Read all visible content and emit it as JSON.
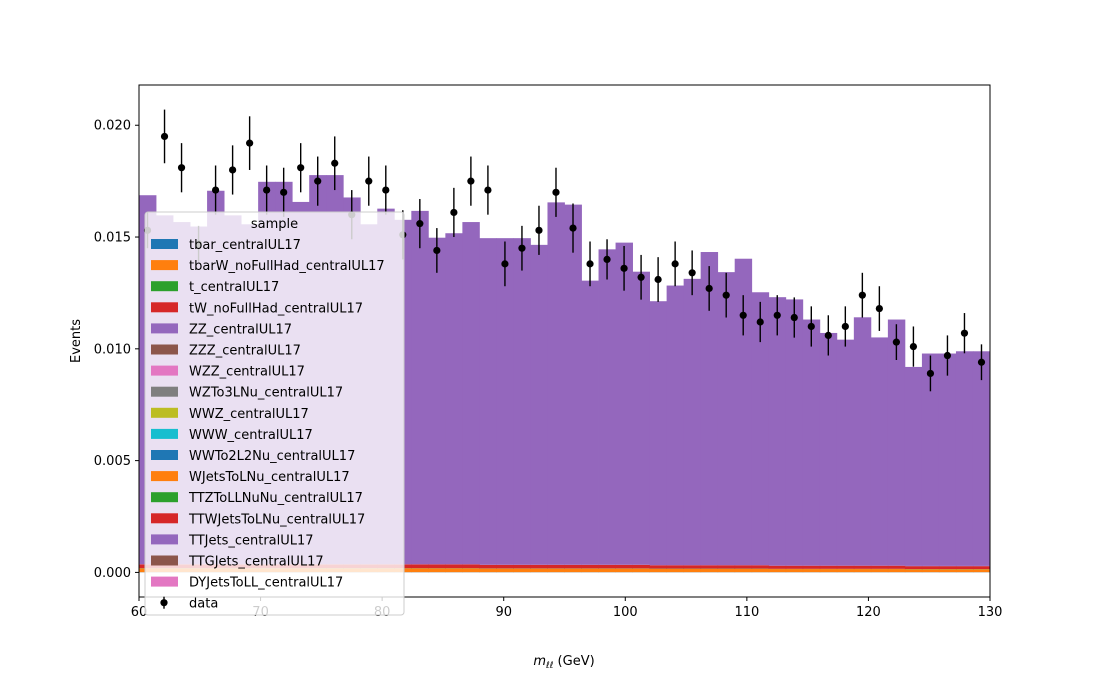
{
  "chart_data": {
    "type": "bar",
    "subtype": "stacked-step-histogram-with-data-points",
    "xlabel_main": "m",
    "xlabel_sub": "ℓℓ",
    "xlabel_unit": " (GeV)",
    "ylabel": "Events",
    "xlim": [
      60,
      130
    ],
    "ylim": [
      -0.0011,
      0.0218
    ],
    "xticks": [
      60,
      70,
      80,
      90,
      100,
      110,
      120,
      130
    ],
    "xtick_labels": [
      "60",
      "70",
      "80",
      "90",
      "100",
      "110",
      "120",
      "130"
    ],
    "yticks": [
      0.0,
      0.005,
      0.01,
      0.015,
      0.02
    ],
    "ytick_labels": [
      "0.000",
      "0.005",
      "0.010",
      "0.015",
      "0.020"
    ],
    "bin_edges": [
      60,
      61.4,
      62.8,
      64.2,
      65.6,
      67,
      68.4,
      69.8,
      71.2,
      72.6,
      74,
      75.4,
      76.8,
      78.2,
      79.6,
      81,
      82.4,
      83.8,
      85.2,
      86.6,
      88,
      89.4,
      90.8,
      92.2,
      93.6,
      95,
      96.4,
      97.8,
      99.2,
      100.6,
      102,
      103.4,
      104.8,
      106.2,
      107.6,
      109,
      110.4,
      111.8,
      113.2,
      114.6,
      116,
      117.4,
      118.8,
      120.2,
      121.6,
      123,
      124.4,
      125.8,
      127.2,
      128.6,
      130
    ],
    "legend_title": "sample",
    "legend_position": "lower-left",
    "series": [
      {
        "name": "tbar_centralUL17",
        "color": "#1f77b4",
        "values": [
          1e-05,
          1e-05,
          1e-05,
          1e-05,
          1e-05,
          1e-05,
          1e-05,
          1e-05,
          1e-05,
          1e-05,
          1e-05,
          1e-05,
          1e-05,
          1e-05,
          1e-05,
          1e-05,
          1e-05,
          1e-05,
          1e-05,
          1e-05,
          1e-05,
          1e-05,
          1e-05,
          1e-05,
          1e-05,
          1e-05,
          1e-05,
          1e-05,
          1e-05,
          1e-05,
          1e-05,
          1e-05,
          1e-05,
          1e-05,
          1e-05,
          1e-05,
          1e-05,
          1e-05,
          1e-05,
          1e-05,
          1e-05,
          1e-05,
          1e-05,
          1e-05,
          1e-05,
          1e-05,
          1e-05,
          1e-05,
          1e-05,
          1e-05
        ]
      },
      {
        "name": "tbarW_noFullHad_centralUL17",
        "color": "#ff7f0e",
        "values": [
          0.00017,
          0.00017,
          0.00017,
          0.00017,
          0.00017,
          0.00017,
          0.00017,
          0.00017,
          0.00017,
          0.00017,
          0.00017,
          0.00017,
          0.00017,
          0.00017,
          0.00017,
          0.00017,
          0.00017,
          0.00017,
          0.00017,
          0.00017,
          0.00016,
          0.00016,
          0.00016,
          0.00016,
          0.00016,
          0.00016,
          0.00016,
          0.00016,
          0.00016,
          0.00016,
          0.00015,
          0.00015,
          0.00015,
          0.00015,
          0.00015,
          0.00015,
          0.00015,
          0.00014,
          0.00014,
          0.00014,
          0.00014,
          0.00014,
          0.00014,
          0.00014,
          0.00014,
          0.00013,
          0.00013,
          0.00013,
          0.00013,
          0.00013
        ]
      },
      {
        "name": "t_centralUL17",
        "color": "#2ca02c",
        "values": [
          1e-05,
          1e-05,
          1e-05,
          1e-05,
          1e-05,
          1e-05,
          1e-05,
          1e-05,
          1e-05,
          1e-05,
          1e-05,
          1e-05,
          1e-05,
          1e-05,
          1e-05,
          1e-05,
          1e-05,
          1e-05,
          1e-05,
          1e-05,
          1e-05,
          1e-05,
          1e-05,
          1e-05,
          1e-05,
          1e-05,
          1e-05,
          1e-05,
          1e-05,
          1e-05,
          1e-05,
          1e-05,
          1e-05,
          1e-05,
          1e-05,
          1e-05,
          1e-05,
          1e-05,
          1e-05,
          1e-05,
          1e-05,
          1e-05,
          1e-05,
          1e-05,
          1e-05,
          1e-05,
          1e-05,
          1e-05,
          1e-05,
          1e-05
        ]
      },
      {
        "name": "tW_noFullHad_centralUL17",
        "color": "#d62728",
        "values": [
          0.00017,
          0.00017,
          0.00017,
          0.00017,
          0.00017,
          0.00017,
          0.00017,
          0.00017,
          0.00017,
          0.00017,
          0.00017,
          0.00017,
          0.00017,
          0.00017,
          0.00017,
          0.00017,
          0.00017,
          0.00017,
          0.00017,
          0.00017,
          0.00016,
          0.00016,
          0.00016,
          0.00016,
          0.00016,
          0.00016,
          0.00016,
          0.00016,
          0.00016,
          0.00016,
          0.00015,
          0.00015,
          0.00015,
          0.00015,
          0.00015,
          0.00015,
          0.00015,
          0.00014,
          0.00014,
          0.00014,
          0.00014,
          0.00014,
          0.00014,
          0.00014,
          0.00014,
          0.00013,
          0.00013,
          0.00013,
          0.00013,
          0.00013
        ]
      },
      {
        "name": "ZZ_centralUL17",
        "color": "#9467bd",
        "values": [
          1e-05,
          1e-05,
          1e-05,
          1e-05,
          1e-05,
          1e-05,
          1e-05,
          1e-05,
          1e-05,
          1e-05,
          1e-05,
          1e-05,
          1e-05,
          1e-05,
          1e-05,
          1e-05,
          1e-05,
          1e-05,
          1e-05,
          1e-05,
          1e-05,
          1e-05,
          1e-05,
          1e-05,
          1e-05,
          1e-05,
          1e-05,
          1e-05,
          1e-05,
          1e-05,
          1e-05,
          1e-05,
          1e-05,
          1e-05,
          1e-05,
          1e-05,
          1e-05,
          1e-05,
          1e-05,
          1e-05,
          1e-05,
          1e-05,
          1e-05,
          1e-05,
          1e-05,
          1e-05,
          1e-05,
          1e-05,
          1e-05,
          1e-05
        ]
      },
      {
        "name": "ZZZ_centralUL17",
        "color": "#8c564b",
        "values": [
          0,
          0,
          0,
          0,
          0,
          0,
          0,
          0,
          0,
          0,
          0,
          0,
          0,
          0,
          0,
          0,
          0,
          0,
          0,
          0,
          0,
          0,
          0,
          0,
          0,
          0,
          0,
          0,
          0,
          0,
          0,
          0,
          0,
          0,
          0,
          0,
          0,
          0,
          0,
          0,
          0,
          0,
          0,
          0,
          0,
          0,
          0,
          0,
          0,
          0
        ]
      },
      {
        "name": "WZZ_centralUL17",
        "color": "#e377c2",
        "values": [
          0,
          0,
          0,
          0,
          0,
          0,
          0,
          0,
          0,
          0,
          0,
          0,
          0,
          0,
          0,
          0,
          0,
          0,
          0,
          0,
          0,
          0,
          0,
          0,
          0,
          0,
          0,
          0,
          0,
          0,
          0,
          0,
          0,
          0,
          0,
          0,
          0,
          0,
          0,
          0,
          0,
          0,
          0,
          0,
          0,
          0,
          0,
          0,
          0,
          0
        ]
      },
      {
        "name": "WZTo3LNu_centralUL17",
        "color": "#7f7f7f",
        "values": [
          0,
          0,
          0,
          0,
          0,
          0,
          0,
          0,
          0,
          0,
          0,
          0,
          0,
          0,
          0,
          0,
          0,
          0,
          0,
          0,
          0,
          0,
          0,
          0,
          0,
          0,
          0,
          0,
          0,
          0,
          0,
          0,
          0,
          0,
          0,
          0,
          0,
          0,
          0,
          0,
          0,
          0,
          0,
          0,
          0,
          0,
          0,
          0,
          0,
          0
        ]
      },
      {
        "name": "WWZ_centralUL17",
        "color": "#bcbd22",
        "values": [
          0,
          0,
          0,
          0,
          0,
          0,
          0,
          0,
          0,
          0,
          0,
          0,
          0,
          0,
          0,
          0,
          0,
          0,
          0,
          0,
          0,
          0,
          0,
          0,
          0,
          0,
          0,
          0,
          0,
          0,
          0,
          0,
          0,
          0,
          0,
          0,
          0,
          0,
          0,
          0,
          0,
          0,
          0,
          0,
          0,
          0,
          0,
          0,
          0,
          0
        ]
      },
      {
        "name": "WWW_centralUL17",
        "color": "#17becf",
        "values": [
          0,
          0,
          0,
          0,
          0,
          0,
          0,
          0,
          0,
          0,
          0,
          0,
          0,
          0,
          0,
          0,
          0,
          0,
          0,
          0,
          0,
          0,
          0,
          0,
          0,
          0,
          0,
          0,
          0,
          0,
          0,
          0,
          0,
          0,
          0,
          0,
          0,
          0,
          0,
          0,
          0,
          0,
          0,
          0,
          0,
          0,
          0,
          0,
          0,
          0
        ]
      },
      {
        "name": "WWTo2L2Nu_centralUL17",
        "color": "#1f77b4",
        "values": [
          0,
          0,
          0,
          0,
          0,
          0,
          0,
          0,
          0,
          0,
          0,
          0,
          0,
          0,
          0,
          0,
          0,
          0,
          0,
          0,
          0,
          0,
          0,
          0,
          0,
          0,
          0,
          0,
          0,
          0,
          0,
          0,
          0,
          0,
          0,
          0,
          0,
          0,
          0,
          0,
          0,
          0,
          0,
          0,
          0,
          0,
          0,
          0,
          0,
          0
        ]
      },
      {
        "name": "WJetsToLNu_centralUL17",
        "color": "#ff7f0e",
        "values": [
          0,
          0,
          0,
          0,
          0,
          0,
          0,
          0,
          0,
          0,
          0,
          0,
          0,
          0,
          0,
          0,
          0,
          0,
          0,
          0,
          0,
          0,
          0,
          0,
          0,
          0,
          0,
          0,
          0,
          0,
          0,
          0,
          0,
          0,
          0,
          0,
          0,
          0,
          0,
          0,
          0,
          0,
          0,
          0,
          0,
          0,
          0,
          0,
          0,
          0
        ]
      },
      {
        "name": "TTZToLLNuNu_centralUL17",
        "color": "#2ca02c",
        "values": [
          0,
          0,
          0,
          0,
          0,
          0,
          0,
          0,
          0,
          0,
          0,
          0,
          0,
          0,
          0,
          0,
          0,
          0,
          0,
          0,
          0,
          0,
          0,
          0,
          0,
          0,
          0,
          0,
          0,
          0,
          0,
          0,
          0,
          0,
          0,
          0,
          0,
          0,
          0,
          0,
          0,
          0,
          0,
          0,
          0,
          0,
          0,
          0,
          0,
          0
        ]
      },
      {
        "name": "TTWJetsToLNu_centralUL17",
        "color": "#d62728",
        "values": [
          0,
          0,
          0,
          0,
          0,
          0,
          0,
          0,
          0,
          0,
          0,
          0,
          0,
          0,
          0,
          0,
          0,
          0,
          0,
          0,
          0,
          0,
          0,
          0,
          0,
          0,
          0,
          0,
          0,
          0,
          0,
          0,
          0,
          0,
          0,
          0,
          0,
          0,
          0,
          0,
          0,
          0,
          0,
          0,
          0,
          0,
          0,
          0,
          0,
          0
        ]
      },
      {
        "name": "TTJets_centralUL17",
        "color": "#9467bd",
        "values": [
          0.0165,
          0.0156,
          0.0153,
          0.0151,
          0.0167,
          0.0156,
          0.0152,
          0.0171,
          0.0171,
          0.0162,
          0.0174,
          0.0174,
          0.0164,
          0.0152,
          0.0159,
          0.0154,
          0.0158,
          0.0146,
          0.0148,
          0.0153,
          0.0146,
          0.0146,
          0.0146,
          0.0143,
          0.0162,
          0.0161,
          0.0127,
          0.0141,
          0.0144,
          0.0131,
          0.0118,
          0.0125,
          0.0128,
          0.014,
          0.0131,
          0.0137,
          0.0122,
          0.012,
          0.0119,
          0.011,
          0.0104,
          0.0101,
          0.0111,
          0.0102,
          0.011,
          0.0089,
          0.0095,
          0.0095,
          0.0096,
          0.0096
        ]
      },
      {
        "name": "TTGJets_centralUL17",
        "color": "#8c564b",
        "values": [
          0,
          0,
          0,
          0,
          0,
          0,
          0,
          0,
          0,
          0,
          0,
          0,
          0,
          0,
          0,
          0,
          0,
          0,
          0,
          0,
          0,
          0,
          0,
          0,
          0,
          0,
          0,
          0,
          0,
          0,
          0,
          0,
          0,
          0,
          0,
          0,
          0,
          0,
          0,
          0,
          0,
          0,
          0,
          0,
          0,
          0,
          0,
          0,
          0,
          0
        ]
      },
      {
        "name": "DYJetsToLL_centralUL17",
        "color": "#e377c2",
        "values": [
          0,
          0,
          0,
          0,
          0,
          0,
          0,
          0,
          0,
          0,
          0,
          0,
          0,
          0,
          0,
          0,
          0,
          0,
          0,
          0,
          0,
          0,
          0,
          0,
          0,
          0,
          0,
          0,
          0,
          0,
          0,
          0,
          0,
          0,
          0,
          0,
          0,
          0,
          0,
          0,
          0,
          0,
          0,
          0,
          0,
          0,
          0,
          0,
          0,
          0
        ]
      }
    ],
    "data_points": {
      "name": "data",
      "color": "#000000",
      "x": [
        60.7,
        62.1,
        63.5,
        64.9,
        66.3,
        67.7,
        69.1,
        70.5,
        71.9,
        73.3,
        74.7,
        76.1,
        77.5,
        78.9,
        80.3,
        81.7,
        83.1,
        84.5,
        85.9,
        87.3,
        88.7,
        90.1,
        91.5,
        92.9,
        94.3,
        95.7,
        97.1,
        98.5,
        99.9,
        101.3,
        102.7,
        104.1,
        105.5,
        106.9,
        108.3,
        109.7,
        111.1,
        112.5,
        113.9,
        115.3,
        116.7,
        118.1,
        119.5,
        120.9,
        122.3,
        123.7,
        125.1,
        126.5,
        127.9,
        129.3
      ],
      "y": [
        0.0153,
        0.0195,
        0.0181,
        0.0147,
        0.0171,
        0.018,
        0.0192,
        0.0171,
        0.017,
        0.0181,
        0.0175,
        0.0183,
        0.016,
        0.0175,
        0.0171,
        0.0151,
        0.0156,
        0.0144,
        0.0161,
        0.0175,
        0.0171,
        0.0138,
        0.0145,
        0.0153,
        0.017,
        0.0154,
        0.0138,
        0.014,
        0.0136,
        0.0132,
        0.0131,
        0.0138,
        0.0134,
        0.0127,
        0.0124,
        0.0115,
        0.0112,
        0.0115,
        0.0114,
        0.011,
        0.0106,
        0.011,
        0.0124,
        0.0118,
        0.0103,
        0.0101,
        0.0089,
        0.0097,
        0.0107,
        0.0094
      ],
      "err": [
        0.0008,
        0.0012,
        0.0011,
        0.0008,
        0.0011,
        0.0011,
        0.0012,
        0.0011,
        0.0011,
        0.0011,
        0.0011,
        0.0012,
        0.0011,
        0.0011,
        0.0011,
        0.0011,
        0.0011,
        0.001,
        0.0011,
        0.0011,
        0.0011,
        0.001,
        0.001,
        0.0011,
        0.0011,
        0.0011,
        0.001,
        0.0009,
        0.001,
        0.001,
        0.001,
        0.001,
        0.001,
        0.001,
        0.001,
        0.0009,
        0.0009,
        0.0009,
        0.0009,
        0.0009,
        0.0009,
        0.0009,
        0.001,
        0.001,
        0.0008,
        0.0009,
        0.0008,
        0.0009,
        0.0009,
        0.0008
      ]
    }
  }
}
